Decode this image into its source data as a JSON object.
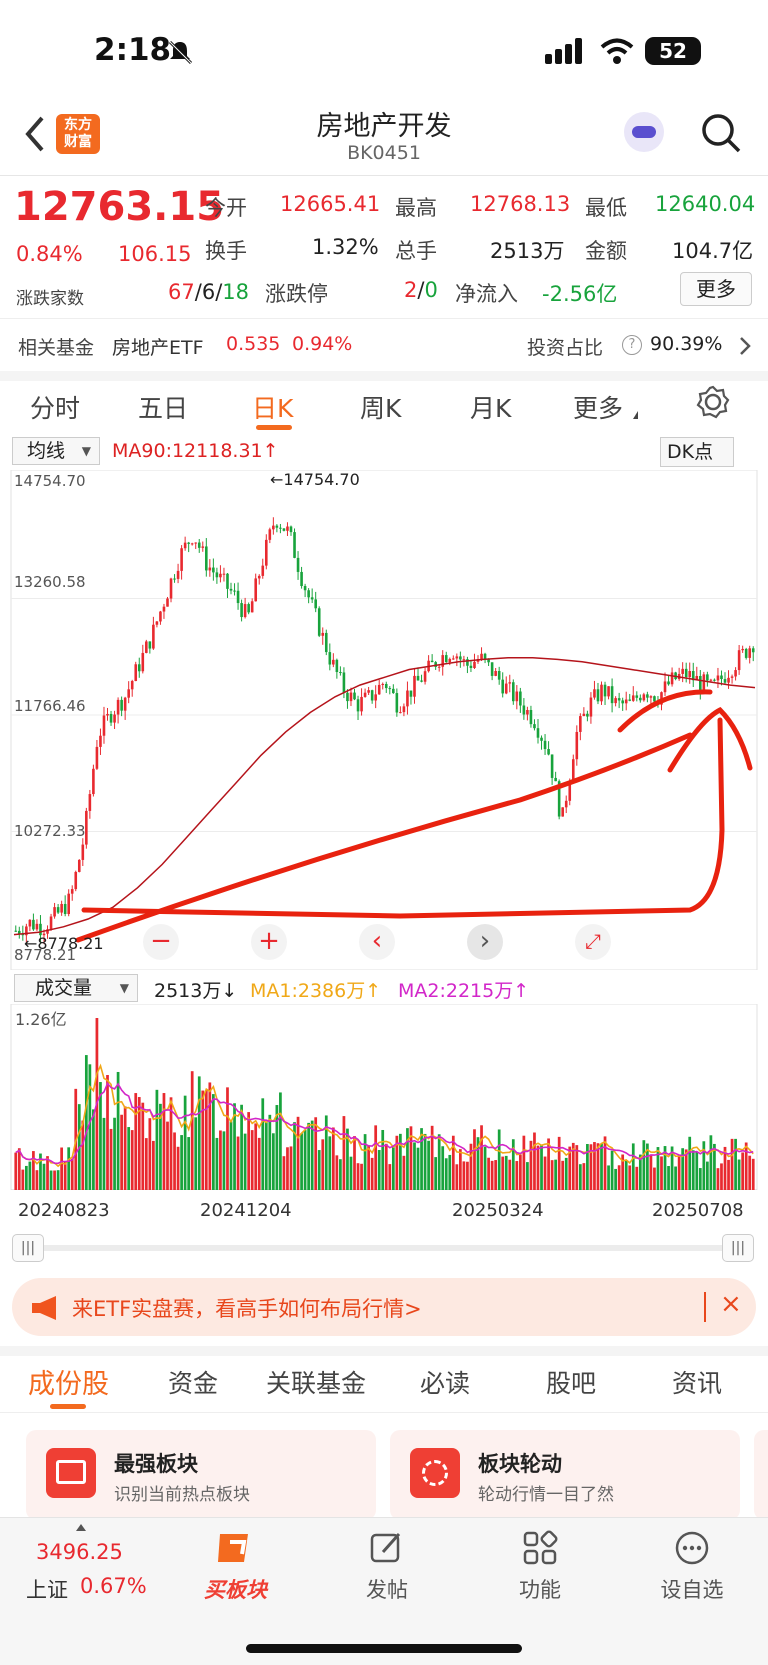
{
  "status": {
    "time": "2:18",
    "battery": "52"
  },
  "header": {
    "title": "房地产开发",
    "code": "BK0451",
    "logo_text": "东方\n财富"
  },
  "quote": {
    "price": "12763.15",
    "pct": "0.84%",
    "change": "106.15",
    "open_label": "今开",
    "open": "12665.41",
    "high_label": "最高",
    "high": "12768.13",
    "low_label": "最低",
    "low": "12640.04",
    "turnover_label": "换手",
    "turnover": "1.32%",
    "vol_label": "总手",
    "vol": "2513万",
    "amount_label": "金额",
    "amount": "104.7亿",
    "updown_label": "涨跌家数",
    "up": "67",
    "sep1": "/",
    "flat": "6",
    "sep2": "/",
    "down": "18",
    "limit_label": "涨跌停",
    "limit_up": "2",
    "sep3": "/",
    "limit_down": "0",
    "netflow_label": "净流入",
    "netflow": "-2.56亿",
    "more": "更多"
  },
  "fund": {
    "label": "相关基金",
    "name": "房地产ETF",
    "price": "0.535",
    "pct": "0.94%",
    "ratio_label": "投资占比",
    "ratio": "90.39%"
  },
  "tabs": [
    "分时",
    "五日",
    "日K",
    "周K",
    "月K",
    "更多"
  ],
  "chart_bar": {
    "ma_select": "均线",
    "ma90": "MA90:12118.31↑",
    "dk": "DK点"
  },
  "chart_data": {
    "type": "candlestick",
    "y_ticks": [
      "14754.70",
      "13260.58",
      "11766.46",
      "10272.33",
      "8778.21"
    ],
    "high_marker": "←14754.70",
    "low_marker": "←8778.21",
    "x_ticks": [
      "20240823",
      "20241204",
      "20250324",
      "20250708"
    ],
    "ylim": [
      8778.21,
      14754.7
    ],
    "close_path": [
      9000,
      9100,
      9050,
      9200,
      9400,
      10200,
      11500,
      11800,
      12000,
      12400,
      12800,
      13300,
      13800,
      14100,
      13700,
      13500,
      13300,
      13000,
      13700,
      14300,
      14100,
      13500,
      13000,
      12500,
      12100,
      11900,
      12000,
      12200,
      11900,
      12100,
      12300,
      12500,
      12600,
      12400,
      12500,
      12300,
      12100,
      11900,
      11700,
      11300,
      10400,
      11500,
      11900,
      12100,
      11900,
      11900,
      12100,
      12000,
      12200,
      12300,
      12200,
      12100,
      12300,
      12500,
      12700
    ],
    "ma90_path": [
      8950,
      8980,
      9050,
      9150,
      9300,
      9550,
      9850,
      10200,
      10550,
      10900,
      11250,
      11550,
      11800,
      12000,
      12150,
      12250,
      12350,
      12400,
      12450,
      12480,
      12500,
      12500,
      12480,
      12450,
      12400,
      12350,
      12300,
      12250,
      12200,
      12150,
      12118
    ]
  },
  "volume": {
    "select": "成交量",
    "vol": "2513万↓",
    "ma1": "MA1:2386万↑",
    "ma2": "MA2:2215万↑",
    "max": "1.26亿"
  },
  "banner": {
    "text": "来ETF实盘赛，看高手如何布局行情>"
  },
  "sub_tabs": [
    "成份股",
    "资金",
    "关联基金",
    "必读",
    "股吧",
    "资讯"
  ],
  "cards": [
    {
      "title": "最强板块",
      "desc": "识别当前热点板块"
    },
    {
      "title": "板块轮动",
      "desc": "轮动行情一目了然"
    }
  ],
  "bottom_nav": {
    "index_value": "3496.25",
    "index_name": "上证",
    "index_pct": "0.67%",
    "buy": "买板块",
    "post": "发帖",
    "func": "功能",
    "watch": "设自选"
  },
  "colors": {
    "up": "#e8292f",
    "down": "#18a33c",
    "accent": "#f36a1f"
  }
}
